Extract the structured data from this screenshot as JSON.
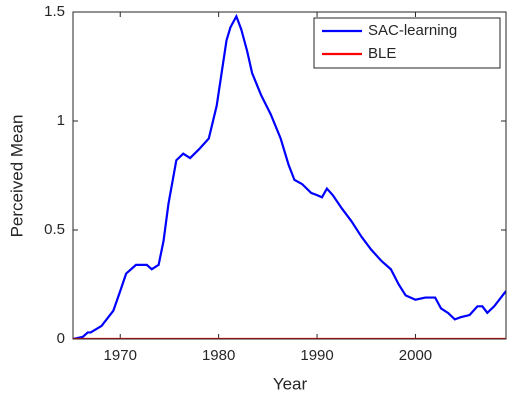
{
  "chart_data": {
    "type": "line",
    "xlabel": "Year",
    "ylabel": "Perceived Mean",
    "xlim": [
      1965.2,
      2009.2
    ],
    "ylim": [
      0,
      1.5
    ],
    "xticks": [
      1970,
      1980,
      1990,
      2000
    ],
    "yticks": [
      0,
      0.5,
      1,
      1.5
    ],
    "legend": "upper right",
    "series": [
      {
        "name": "SAC-learning",
        "color": "#0000ff",
        "x": [
          1965.2,
          1966.2,
          1966.7,
          1967.0,
          1968.1,
          1969.3,
          1970,
          1970.6,
          1971.6,
          1972.7,
          1973.2,
          1973.9,
          1974.4,
          1974.9,
          1975.7,
          1976.4,
          1977.1,
          1978.0,
          1979.0,
          1979.8,
          1980.3,
          1980.8,
          1981.2,
          1981.8,
          1982.3,
          1982.9,
          1983.4,
          1984.3,
          1985.3,
          1986.3,
          1987.1,
          1987.7,
          1988.5,
          1989.4,
          1990.0,
          1990.5,
          1991.0,
          1991.6,
          1992.5,
          1993.5,
          1994.5,
          1995.5,
          1996.5,
          1997.5,
          1998.3,
          1999.0,
          2000.0,
          2001.0,
          2002.0,
          2002.6,
          2003.3,
          2004.0,
          2004.6,
          2005.5,
          2006.3,
          2006.8,
          2007.3,
          2008.0,
          2009.2
        ],
        "values": [
          0,
          0.01,
          0.03,
          0.03,
          0.06,
          0.13,
          0.22,
          0.3,
          0.34,
          0.34,
          0.32,
          0.34,
          0.45,
          0.62,
          0.82,
          0.85,
          0.83,
          0.87,
          0.92,
          1.07,
          1.22,
          1.37,
          1.43,
          1.48,
          1.42,
          1.32,
          1.22,
          1.12,
          1.03,
          0.92,
          0.8,
          0.73,
          0.71,
          0.67,
          0.66,
          0.65,
          0.69,
          0.66,
          0.6,
          0.54,
          0.47,
          0.41,
          0.36,
          0.32,
          0.25,
          0.2,
          0.18,
          0.19,
          0.19,
          0.14,
          0.12,
          0.09,
          0.1,
          0.11,
          0.15,
          0.15,
          0.12,
          0.15,
          0.22
        ]
      },
      {
        "name": "BLE",
        "color": "#ff0000",
        "x": [
          1965.2,
          2009.2
        ],
        "values": [
          0,
          0
        ]
      }
    ]
  }
}
